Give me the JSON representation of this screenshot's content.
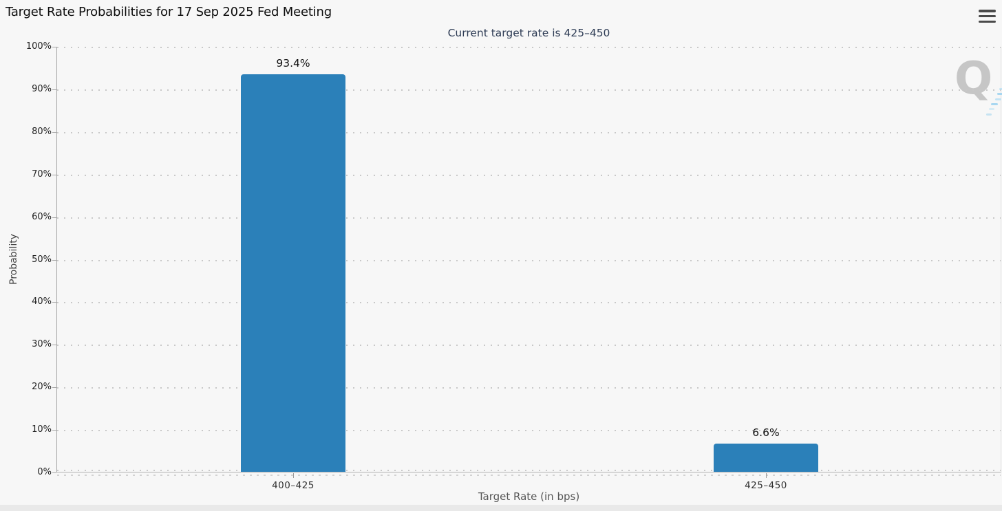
{
  "header": {
    "menu_icon": "hamburger-menu-icon"
  },
  "chart_data": {
    "type": "bar",
    "title": "Target Rate Probabilities for 17 Sep 2025 Fed Meeting",
    "subtitle": "Current target rate is 425–450",
    "categories": [
      "400–425",
      "425–450"
    ],
    "values": [
      93.4,
      6.6
    ],
    "value_labels": [
      "93.4%",
      "6.6%"
    ],
    "xlabel": "Target Rate (in bps)",
    "ylabel": "Probability",
    "ylim": [
      0,
      100
    ],
    "ytick_step": 10,
    "ytick_labels": [
      "100%",
      "90%",
      "80%",
      "70%",
      "60%",
      "50%",
      "40%",
      "30%",
      "20%",
      "10%",
      "0%"
    ],
    "grid": "dotted-horizontal",
    "legend": "none"
  },
  "watermark": {
    "letter": "Q",
    "icon": "quikstrike-q-logo-icon"
  },
  "colors": {
    "bar": "#2b80b9",
    "subtitle_text": "#2e3c55",
    "grid_dot": "#c8c8c8",
    "axis_line": "#a5a5a5",
    "watermark_gray": "#c6c6c6",
    "watermark_blue": "#9ed3ef",
    "background": "#f7f7f7",
    "footer_strip": "#e9e9e9"
  }
}
